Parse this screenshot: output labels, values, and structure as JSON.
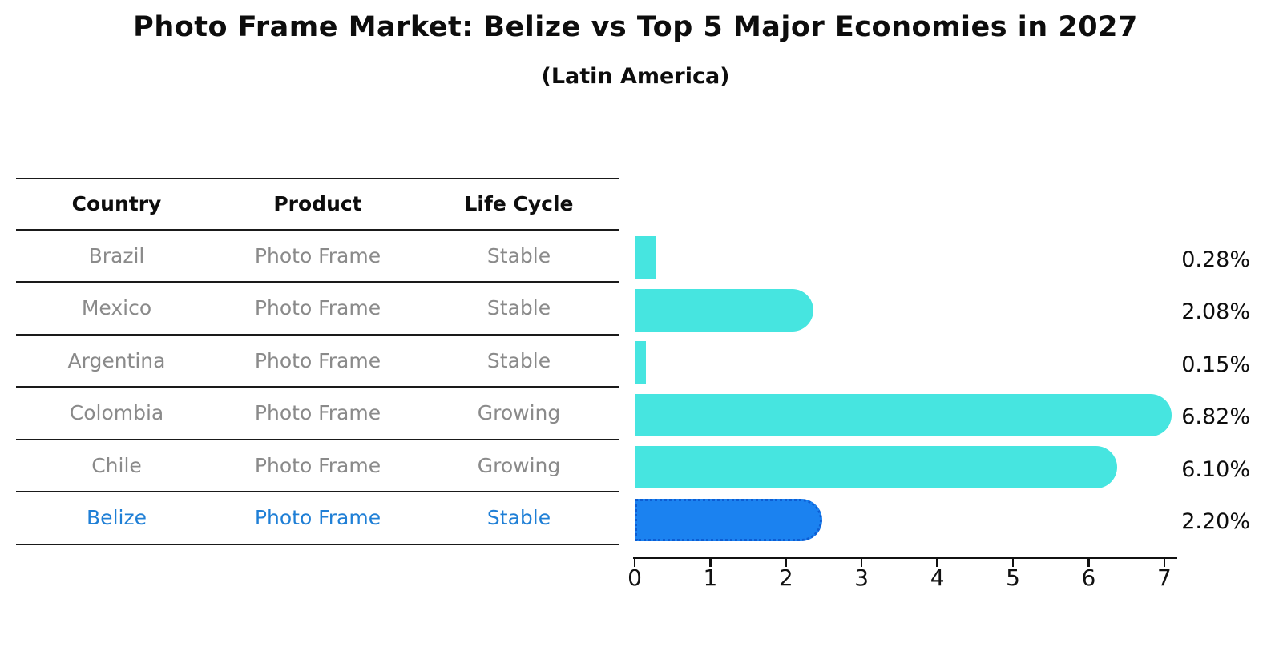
{
  "title": "Photo Frame Market: Belize vs Top 5 Major Economies in 2027",
  "subtitle": "(Latin America)",
  "table": {
    "headers": [
      "Country",
      "Product",
      "Life Cycle"
    ],
    "rows": [
      {
        "country": "Brazil",
        "product": "Photo Frame",
        "life_cycle": "Stable",
        "highlight": false
      },
      {
        "country": "Mexico",
        "product": "Photo Frame",
        "life_cycle": "Stable",
        "highlight": false
      },
      {
        "country": "Argentina",
        "product": "Photo Frame",
        "life_cycle": "Stable",
        "highlight": false
      },
      {
        "country": "Colombia",
        "product": "Photo Frame",
        "life_cycle": "Growing",
        "highlight": false
      },
      {
        "country": "Chile",
        "product": "Photo Frame",
        "life_cycle": "Growing",
        "highlight": false
      },
      {
        "country": "Belize",
        "product": "Photo Frame",
        "life_cycle": "Stable",
        "highlight": true
      }
    ]
  },
  "chart_data": {
    "type": "bar",
    "orientation": "horizontal",
    "title": "Photo Frame Market: Belize vs Top 5 Major Economies in 2027",
    "subtitle": "(Latin America)",
    "categories": [
      "Brazil",
      "Mexico",
      "Argentina",
      "Colombia",
      "Chile",
      "Belize"
    ],
    "values": [
      0.28,
      2.08,
      0.15,
      6.82,
      6.1,
      2.2
    ],
    "value_labels": [
      "0.28%",
      "2.08%",
      "0.15%",
      "6.82%",
      "6.10%",
      "2.20%"
    ],
    "x_ticks": [
      "0",
      "1",
      "2",
      "3",
      "4",
      "5",
      "6",
      "7"
    ],
    "xlim": [
      0,
      7
    ],
    "grid": false,
    "legend": false,
    "bar_color": "#46E5E0",
    "highlight_index": 5,
    "highlight_color": "#1B82F0",
    "highlight_border_color": "#0D5DD3",
    "label_color": "#0d0d0d"
  }
}
